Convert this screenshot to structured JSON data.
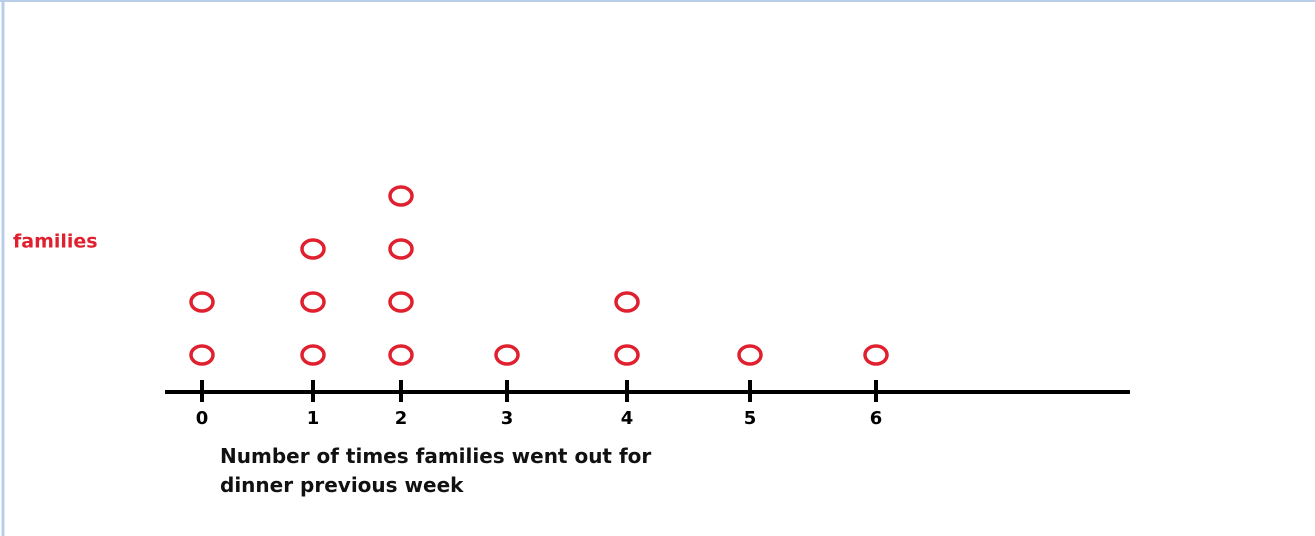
{
  "chart_data": {
    "type": "dot",
    "y_label": "families",
    "x_label": "Number of times families went out for dinner previous week",
    "categories": [
      "0",
      "1",
      "2",
      "3",
      "4",
      "5",
      "6"
    ],
    "values": [
      2,
      3,
      4,
      1,
      2,
      1,
      1
    ],
    "color": "#e0202e"
  }
}
